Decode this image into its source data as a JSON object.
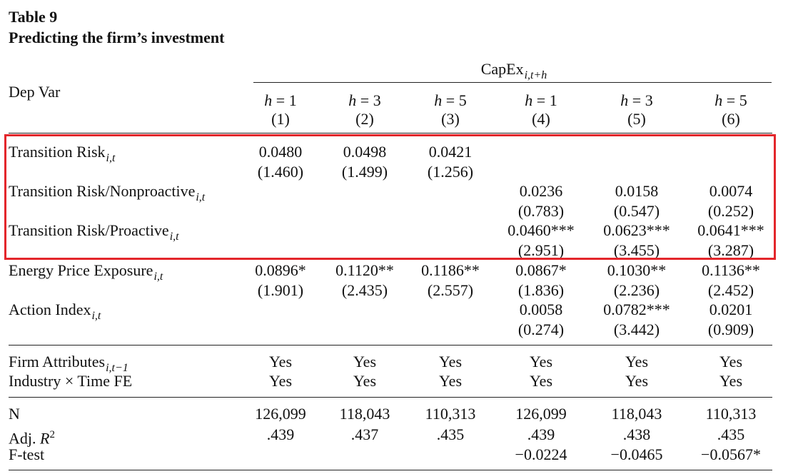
{
  "table": {
    "number": "Table 9",
    "caption": "Predicting the firm’s investment",
    "dep_header": {
      "base": "CapEx",
      "sub": "i,t+h"
    },
    "depvar_label": "Dep Var",
    "columns": [
      {
        "h": "h = 1",
        "num": "(1)"
      },
      {
        "h": "h = 3",
        "num": "(2)"
      },
      {
        "h": "h = 5",
        "num": "(3)"
      },
      {
        "h": "h = 1",
        "num": "(4)"
      },
      {
        "h": "h = 3",
        "num": "(5)"
      },
      {
        "h": "h = 5",
        "num": "(6)"
      }
    ],
    "rows": [
      {
        "label": "Transition Risk",
        "sub": "i,t",
        "coef": [
          "0.0480",
          "0.0498",
          "0.0421",
          "",
          "",
          ""
        ],
        "tstat": [
          "(1.460)",
          "(1.499)",
          "(1.256)",
          "",
          "",
          ""
        ]
      },
      {
        "label": "Transition Risk/Nonproactive",
        "sub": "i,t",
        "coef": [
          "",
          "",
          "",
          "0.0236",
          "0.0158",
          "0.0074"
        ],
        "tstat": [
          "",
          "",
          "",
          "(0.783)",
          "(0.547)",
          "(0.252)"
        ]
      },
      {
        "label": "Transition Risk/Proactive",
        "sub": "i,t",
        "coef": [
          "",
          "",
          "",
          "0.0460***",
          "0.0623***",
          "0.0641***"
        ],
        "tstat": [
          "",
          "",
          "",
          "(2.951)",
          "(3.455)",
          "(3.287)"
        ]
      },
      {
        "label": "Energy Price Exposure",
        "sub": "i,t",
        "coef": [
          "0.0896*",
          "0.1120**",
          "0.1186**",
          "0.0867*",
          "0.1030**",
          "0.1136**"
        ],
        "tstat": [
          "(1.901)",
          "(2.435)",
          "(2.557)",
          "(1.836)",
          "(2.236)",
          "(2.452)"
        ]
      },
      {
        "label": "Action Index",
        "sub": "i,t",
        "coef": [
          "",
          "",
          "",
          "0.0058",
          "0.0782***",
          "0.0201"
        ],
        "tstat": [
          "",
          "",
          "",
          "(0.274)",
          "(3.442)",
          "(0.909)"
        ]
      }
    ],
    "controls": [
      {
        "label": "Firm Attributes",
        "sub": "i,t−1",
        "values": [
          "Yes",
          "Yes",
          "Yes",
          "Yes",
          "Yes",
          "Yes"
        ]
      },
      {
        "label": "Industry × Time FE",
        "sub": "",
        "values": [
          "Yes",
          "Yes",
          "Yes",
          "Yes",
          "Yes",
          "Yes"
        ]
      }
    ],
    "stats": [
      {
        "label": "N",
        "values": [
          "126,099",
          "118,043",
          "110,313",
          "126,099",
          "118,043",
          "110,313"
        ]
      },
      {
        "label": "Adj. R",
        "sup": "2",
        "values": [
          ".439",
          ".437",
          ".435",
          ".439",
          ".438",
          ".435"
        ]
      },
      {
        "label": "F-test",
        "values": [
          "",
          "",
          "",
          "−0.0224",
          "−0.0465",
          "−0.0567*"
        ]
      }
    ]
  },
  "highlight_color": "#e3262b"
}
